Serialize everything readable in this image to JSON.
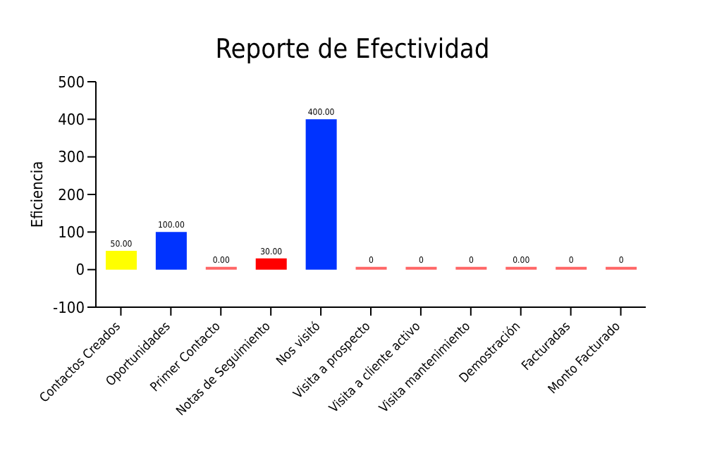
{
  "chart_data": {
    "type": "bar",
    "title": "Reporte de Efectividad",
    "ylabel": "Eficiencia",
    "categories": [
      "Contactos Creados",
      "Oportunidades",
      "Primer Contacto",
      "Notas de Seguimiento",
      "Nos visitó",
      "Visita a prospecto",
      "Visita a cliente activo",
      "Visita mantenimiento",
      "Demostración",
      "Facturadas",
      "Monto Facturado"
    ],
    "values": [
      50,
      100,
      0,
      30,
      400,
      0,
      0,
      0,
      0,
      0,
      0
    ],
    "colors": [
      "#ffff00",
      "#0033ff",
      "#ff6666",
      "#ff0000",
      "#0033ff",
      "#ff6666",
      "#ff6666",
      "#ff6666",
      "#ff6666",
      "#ff6666",
      "#ff6666"
    ],
    "value_labels": [
      "50.00",
      "100.00",
      "0.00",
      "30.00",
      "400.00",
      "0",
      "0",
      "0",
      "0.00",
      "0",
      "0"
    ],
    "ylim": [
      -100,
      500
    ],
    "yticks": [
      -100,
      0,
      100,
      200,
      300,
      400,
      500
    ],
    "grid": false
  }
}
